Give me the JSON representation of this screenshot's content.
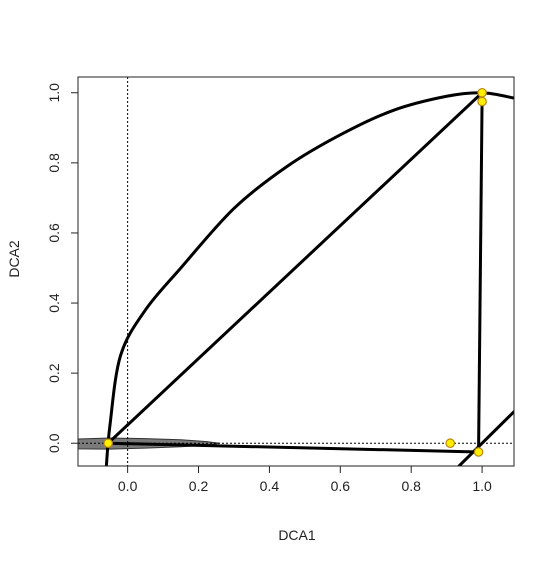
{
  "chart_data": {
    "type": "scatter",
    "title": "",
    "xlabel": "DCA1",
    "ylabel": "DCA2",
    "xlim": [
      -0.14,
      1.09
    ],
    "ylim": [
      -0.065,
      1.045
    ],
    "x_ticks": [
      0.0,
      0.2,
      0.4,
      0.6,
      0.8,
      1.0
    ],
    "x_tick_labels": [
      "0.0",
      "0.2",
      "0.4",
      "0.6",
      "0.8",
      "1.0"
    ],
    "y_ticks": [
      0.0,
      0.2,
      0.4,
      0.6,
      0.8,
      1.0
    ],
    "y_tick_labels": [
      "0.0",
      "0.2",
      "0.4",
      "0.6",
      "0.8",
      "1.0"
    ],
    "reference_lines": {
      "x": 0.0,
      "y": 0.0,
      "style": "dotted"
    },
    "points": [
      {
        "x": -0.055,
        "y": 0.0
      },
      {
        "x": 0.91,
        "y": 0.0
      },
      {
        "x": 0.99,
        "y": -0.025
      },
      {
        "x": 1.0,
        "y": 1.0
      },
      {
        "x": 1.0,
        "y": 0.975
      }
    ],
    "curves": [
      {
        "style": "arc",
        "x": [
          -0.06,
          -0.05,
          -0.02,
          0.05,
          0.15,
          0.3,
          0.45,
          0.6,
          0.75,
          0.9,
          1.0,
          1.09
        ],
        "y": [
          -0.065,
          0.05,
          0.25,
          0.38,
          0.5,
          0.67,
          0.79,
          0.88,
          0.95,
          0.99,
          1.0,
          0.985
        ]
      },
      {
        "style": "line",
        "x": [
          -0.055,
          1.0
        ],
        "y": [
          0.0,
          1.0
        ]
      },
      {
        "style": "line",
        "x": [
          -0.055,
          0.99
        ],
        "y": [
          0.0,
          -0.025
        ]
      },
      {
        "style": "line",
        "x": [
          0.99,
          1.0
        ],
        "y": [
          -0.025,
          0.985
        ]
      },
      {
        "style": "line",
        "x": [
          0.935,
          1.09
        ],
        "y": [
          -0.065,
          0.09
        ]
      }
    ],
    "shaded_region": {
      "x": [
        -0.14,
        -0.05,
        0.05,
        0.15,
        0.22,
        0.26,
        0.22,
        0.15,
        0.05,
        -0.05,
        -0.14
      ],
      "y": [
        0.012,
        0.015,
        0.013,
        0.01,
        0.005,
        0.0,
        -0.006,
        -0.01,
        -0.014,
        -0.017,
        -0.016
      ]
    },
    "grid": false,
    "legend": "none",
    "colors": {
      "point_fill": "#ffee00",
      "point_stroke": "#b8860b",
      "line": "#000000",
      "shade": "#7a7a7a"
    }
  }
}
